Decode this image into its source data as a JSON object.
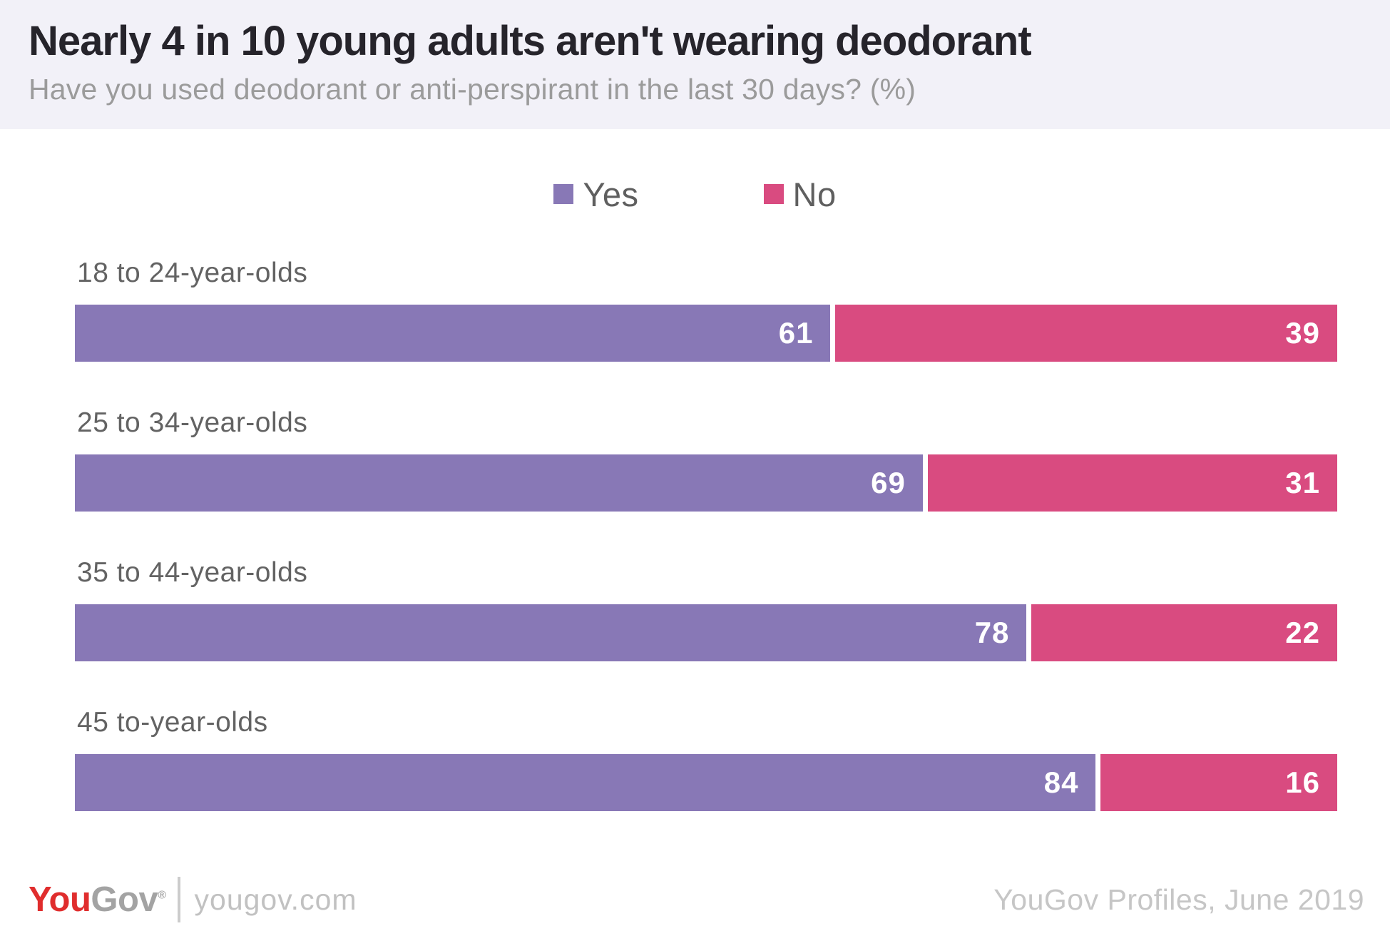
{
  "header": {
    "title": "Nearly 4 in 10 young adults aren't wearing deodorant",
    "subtitle": "Have you used deodorant or anti-perspirant in the last 30 days? (%)"
  },
  "legend": {
    "items": [
      {
        "label": "Yes",
        "color": "#8878b6"
      },
      {
        "label": "No",
        "color": "#d94b80"
      }
    ]
  },
  "chart_data": {
    "type": "bar",
    "orientation": "horizontal",
    "stacked": true,
    "title": "Nearly 4 in 10 young adults aren't wearing deodorant",
    "subtitle": "Have you used deodorant or anti-perspirant in the last 30 days? (%)",
    "xlabel": "",
    "ylabel": "",
    "xlim": [
      0,
      100
    ],
    "grid": false,
    "legend_position": "top-center",
    "categories": [
      "18 to 24-year-olds",
      "25 to 34-year-olds",
      "35 to 44-year-olds",
      "45 to-year-olds"
    ],
    "series": [
      {
        "name": "Yes",
        "color": "#8878b6",
        "values": [
          61,
          69,
          78,
          84
        ]
      },
      {
        "name": "No",
        "color": "#d94b80",
        "values": [
          39,
          31,
          22,
          16
        ]
      }
    ]
  },
  "footer": {
    "logo": {
      "you": "You",
      "gov": "Gov",
      "registered": "®"
    },
    "website": "yougov.com",
    "source": "YouGov Profiles, June 2019"
  },
  "colors": {
    "header_bg": "#f2f1f8",
    "yes": "#8878b6",
    "no": "#d94b80",
    "logo_red": "#e02d2d",
    "text_dark": "#26242b",
    "text_light": "#9b9b9b"
  }
}
